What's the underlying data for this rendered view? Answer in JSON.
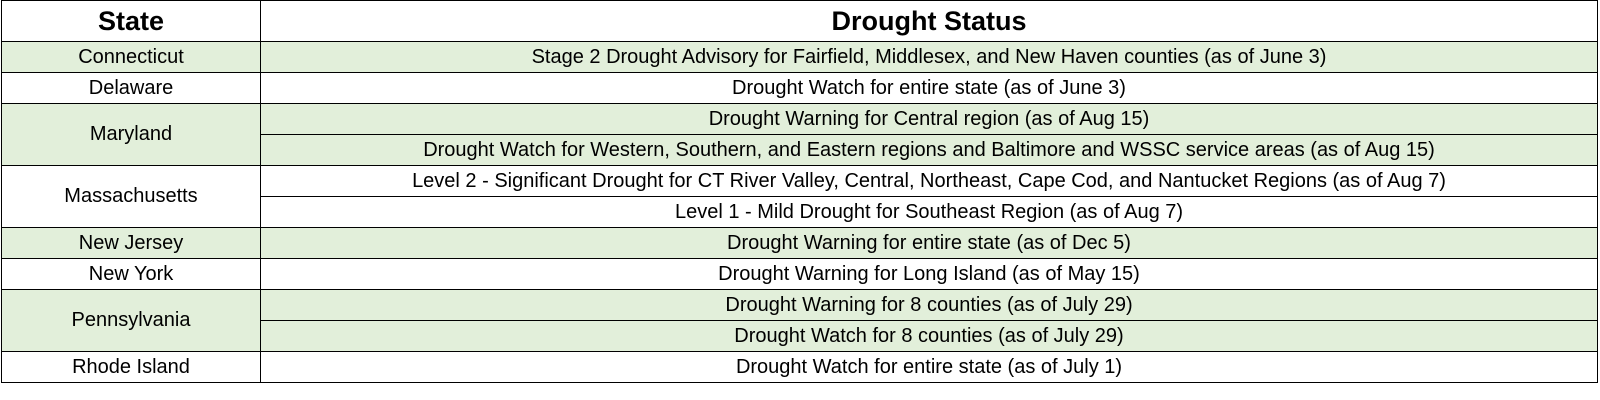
{
  "table": {
    "headers": [
      "State",
      "Drought Status"
    ],
    "rows": [
      {
        "state": "Connecticut",
        "statuses": [
          "Stage 2 Drought Advisory for Fairfield, Middlesex, and New Haven counties (as of June 3)"
        ]
      },
      {
        "state": "Delaware",
        "statuses": [
          "Drought Watch for entire state (as of June 3)"
        ]
      },
      {
        "state": "Maryland",
        "statuses": [
          "Drought Warning for Central region (as of Aug 15)",
          "Drought Watch for Western, Southern, and Eastern regions and Baltimore and WSSC service areas (as of Aug 15)"
        ]
      },
      {
        "state": "Massachusetts",
        "statuses": [
          "Level 2 - Significant Drought for CT River Valley, Central, Northeast, Cape Cod, and Nantucket Regions (as of Aug 7)",
          "Level 1 - Mild Drought for Southeast Region (as of Aug 7)"
        ]
      },
      {
        "state": "New Jersey",
        "statuses": [
          "Drought Warning for entire state (as of Dec 5)"
        ]
      },
      {
        "state": "New York",
        "statuses": [
          "Drought Warning for Long Island (as of May 15)"
        ]
      },
      {
        "state": "Pennsylvania",
        "statuses": [
          "Drought Warning for 8 counties (as of July 29)",
          "Drought Watch for 8 counties (as of July 29)"
        ]
      },
      {
        "state": "Rhode Island",
        "statuses": [
          "Drought Watch for entire state (as of July 1)"
        ]
      }
    ]
  },
  "colors": {
    "band_green": "#e2efda",
    "band_white": "#ffffff",
    "border": "#000000"
  }
}
